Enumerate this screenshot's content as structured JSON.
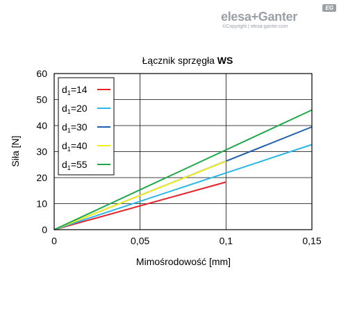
{
  "brand": {
    "name": "elesa+Ganter",
    "copyright": "©Copyright | elesa-ganter.com",
    "badge": "EG"
  },
  "chart_data": {
    "type": "line",
    "title_prefix": "Łącznik sprzęgła ",
    "title_bold": "WS",
    "xlabel": "Mimośrodowość [mm]",
    "ylabel": "Siła [N]",
    "xlim": [
      0,
      0.15
    ],
    "ylim": [
      0,
      60
    ],
    "xticks": [
      0,
      0.05,
      0.1,
      0.15
    ],
    "xtick_labels": [
      "0",
      "0,05",
      "0,1",
      "0,15"
    ],
    "yticks": [
      0,
      10,
      20,
      30,
      40,
      50,
      60
    ],
    "ytick_labels": [
      "0",
      "10",
      "20",
      "30",
      "40",
      "50",
      "60"
    ],
    "grid": true,
    "legend_position": "top-left",
    "series": [
      {
        "name": "d1=14",
        "name_main": "d",
        "name_sub": "1",
        "name_rest": "=14",
        "color": "#e8202a",
        "x": [
          0,
          0.1
        ],
        "y": [
          0,
          18.3
        ]
      },
      {
        "name": "d1=20",
        "name_main": "d",
        "name_sub": "1",
        "name_rest": "=20",
        "color": "#29b6e8",
        "x": [
          0,
          0.15
        ],
        "y": [
          0,
          32.7
        ]
      },
      {
        "name": "d1=30",
        "name_main": "d",
        "name_sub": "1",
        "name_rest": "=30",
        "color": "#1f5fb0",
        "x": [
          0,
          0.15
        ],
        "y": [
          0,
          39.5
        ]
      },
      {
        "name": "d1=40",
        "name_main": "d",
        "name_sub": "1",
        "name_rest": "=40",
        "color": "#f2ee1a",
        "x": [
          0,
          0.1
        ],
        "y": [
          0,
          26.3
        ]
      },
      {
        "name": "d1=55",
        "name_main": "d",
        "name_sub": "1",
        "name_rest": "=55",
        "color": "#1ea84a",
        "x": [
          0,
          0.15
        ],
        "y": [
          0,
          46.0
        ]
      }
    ]
  }
}
